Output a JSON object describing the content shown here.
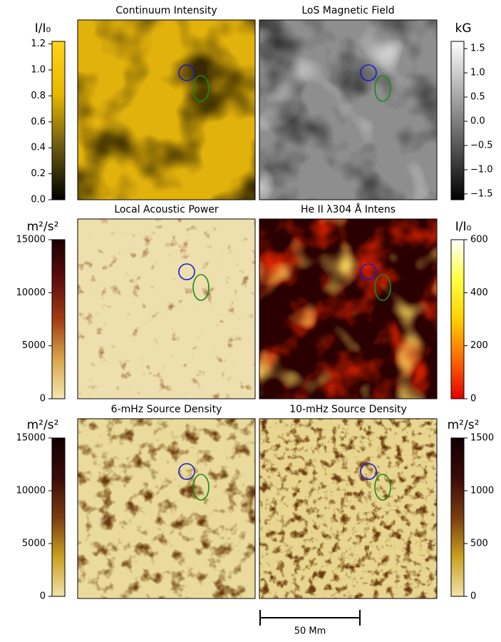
{
  "chart_data": [
    {
      "type": "image",
      "title": "Continuum Intensity",
      "colorbar": {
        "side": "left",
        "label": "I/I₀",
        "lim": [
          0,
          1.22
        ],
        "ticks": [
          {
            "value": 0,
            "label": "0.0"
          },
          0.2,
          0.4,
          0.6,
          0.8,
          {
            "value": 1,
            "label": "1.0"
          },
          1.2
        ],
        "colors": [
          "#000000",
          "#6b5a12",
          "#e8b800",
          "#ffd21a"
        ]
      }
    },
    {
      "type": "image",
      "title": "LoS Magnetic Field",
      "colorbar": {
        "side": "right",
        "label": "kG",
        "lim": [
          -1.62,
          1.65
        ],
        "ticks": [
          {
            "value": -1.5,
            "label": "−1.5"
          },
          {
            "value": -1,
            "label": "−1.0"
          },
          {
            "value": -0.5,
            "label": "−0.5"
          },
          {
            "value": 0,
            "label": "0.0"
          },
          0.5,
          {
            "value": 1,
            "label": "1.0"
          },
          1.5
        ],
        "colors": [
          "#000000",
          "#808080",
          "#ffffff"
        ]
      }
    },
    {
      "type": "image",
      "title": "Local Acoustic Power",
      "colorbar": {
        "side": "left",
        "label": "m²/s²",
        "lim": [
          0,
          15000
        ],
        "ticks": [
          0,
          5000,
          10000,
          15000
        ],
        "colors": [
          "#f2e6b0",
          "#d9a64a",
          "#a33a12",
          "#5e0e0e",
          "#1a0000"
        ]
      }
    },
    {
      "type": "image",
      "title": "He II λ304 Å Intens",
      "colorbar": {
        "side": "right",
        "label": "I/I₀",
        "lim": [
          0,
          600
        ],
        "ticks": [
          0,
          200,
          400,
          600
        ],
        "colors": [
          "#e00000",
          "#ff6a00",
          "#ffd000",
          "#ffff40",
          "#ffffff"
        ]
      }
    },
    {
      "type": "image",
      "title": "6-mHz Source Density",
      "colorbar": {
        "side": "left",
        "label": "m²/s²",
        "lim": [
          0,
          15000
        ],
        "ticks": [
          0,
          5000,
          10000,
          15000
        ],
        "colors": [
          "#f0e3a8",
          "#c9a020",
          "#7a3d10",
          "#3a0a08",
          "#120000"
        ]
      }
    },
    {
      "type": "image",
      "title": "10-mHz Source Density",
      "colorbar": {
        "side": "right",
        "label": "m²/s²",
        "lim": [
          0,
          1500
        ],
        "ticks": [
          0,
          500,
          1000,
          1500
        ],
        "colors": [
          "#f0e3a8",
          "#c9a020",
          "#7a3d10",
          "#3a0a08",
          "#120000"
        ]
      }
    }
  ],
  "scale_bar": "50 Mm"
}
